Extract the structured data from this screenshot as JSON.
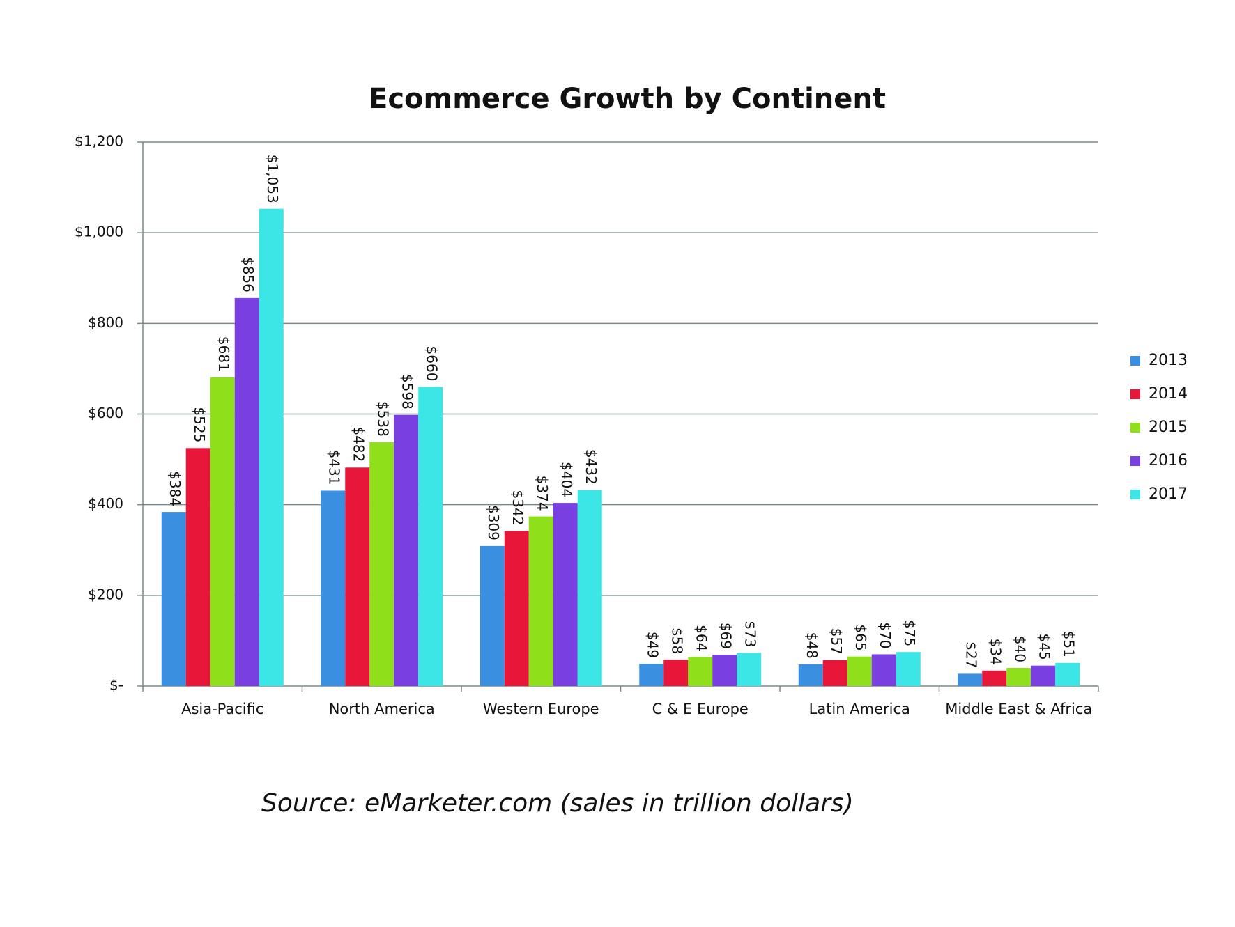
{
  "chart_data": {
    "type": "bar",
    "title": "Ecommerce Growth by Continent",
    "source": "Source: eMarketer.com (sales in trillion dollars)",
    "categories": [
      "Asia-Pacific",
      "North America",
      "Western Europe",
      "C & E Europe",
      "Latin America",
      "Middle East & Africa"
    ],
    "series": [
      {
        "name": "2013",
        "color": "#3a8fe0",
        "values": [
          384,
          431,
          309,
          49,
          48,
          27
        ],
        "value_labels": [
          "$384",
          "$431",
          "$309",
          "$49",
          "$48",
          "$27"
        ]
      },
      {
        "name": "2014",
        "color": "#e8173a",
        "values": [
          525,
          482,
          342,
          58,
          57,
          34
        ],
        "value_labels": [
          "$525",
          "$482",
          "$342",
          "$58",
          "$57",
          "$34"
        ]
      },
      {
        "name": "2015",
        "color": "#8fe01a",
        "values": [
          681,
          538,
          374,
          64,
          65,
          40
        ],
        "value_labels": [
          "$681",
          "$538",
          "$374",
          "$64",
          "$65",
          "$40"
        ]
      },
      {
        "name": "2016",
        "color": "#7a3fe0",
        "values": [
          856,
          598,
          404,
          69,
          70,
          45
        ],
        "value_labels": [
          "$856",
          "$598",
          "$404",
          "$69",
          "$70",
          "$45"
        ]
      },
      {
        "name": "2017",
        "color": "#3de6e6",
        "values": [
          1053,
          660,
          432,
          73,
          75,
          51
        ],
        "value_labels": [
          "$1,053",
          "$660",
          "$432",
          "$73",
          "$75",
          "$51"
        ]
      }
    ],
    "ylim": [
      0,
      1200
    ],
    "yticks": [
      {
        "value": 0,
        "label": "$-"
      },
      {
        "value": 200,
        "label": "$200"
      },
      {
        "value": 400,
        "label": "$400"
      },
      {
        "value": 600,
        "label": "$600"
      },
      {
        "value": 800,
        "label": "$800"
      },
      {
        "value": 1000,
        "label": "$1,000"
      },
      {
        "value": 1200,
        "label": "$1,200"
      }
    ],
    "grid": true,
    "legend": "right"
  }
}
